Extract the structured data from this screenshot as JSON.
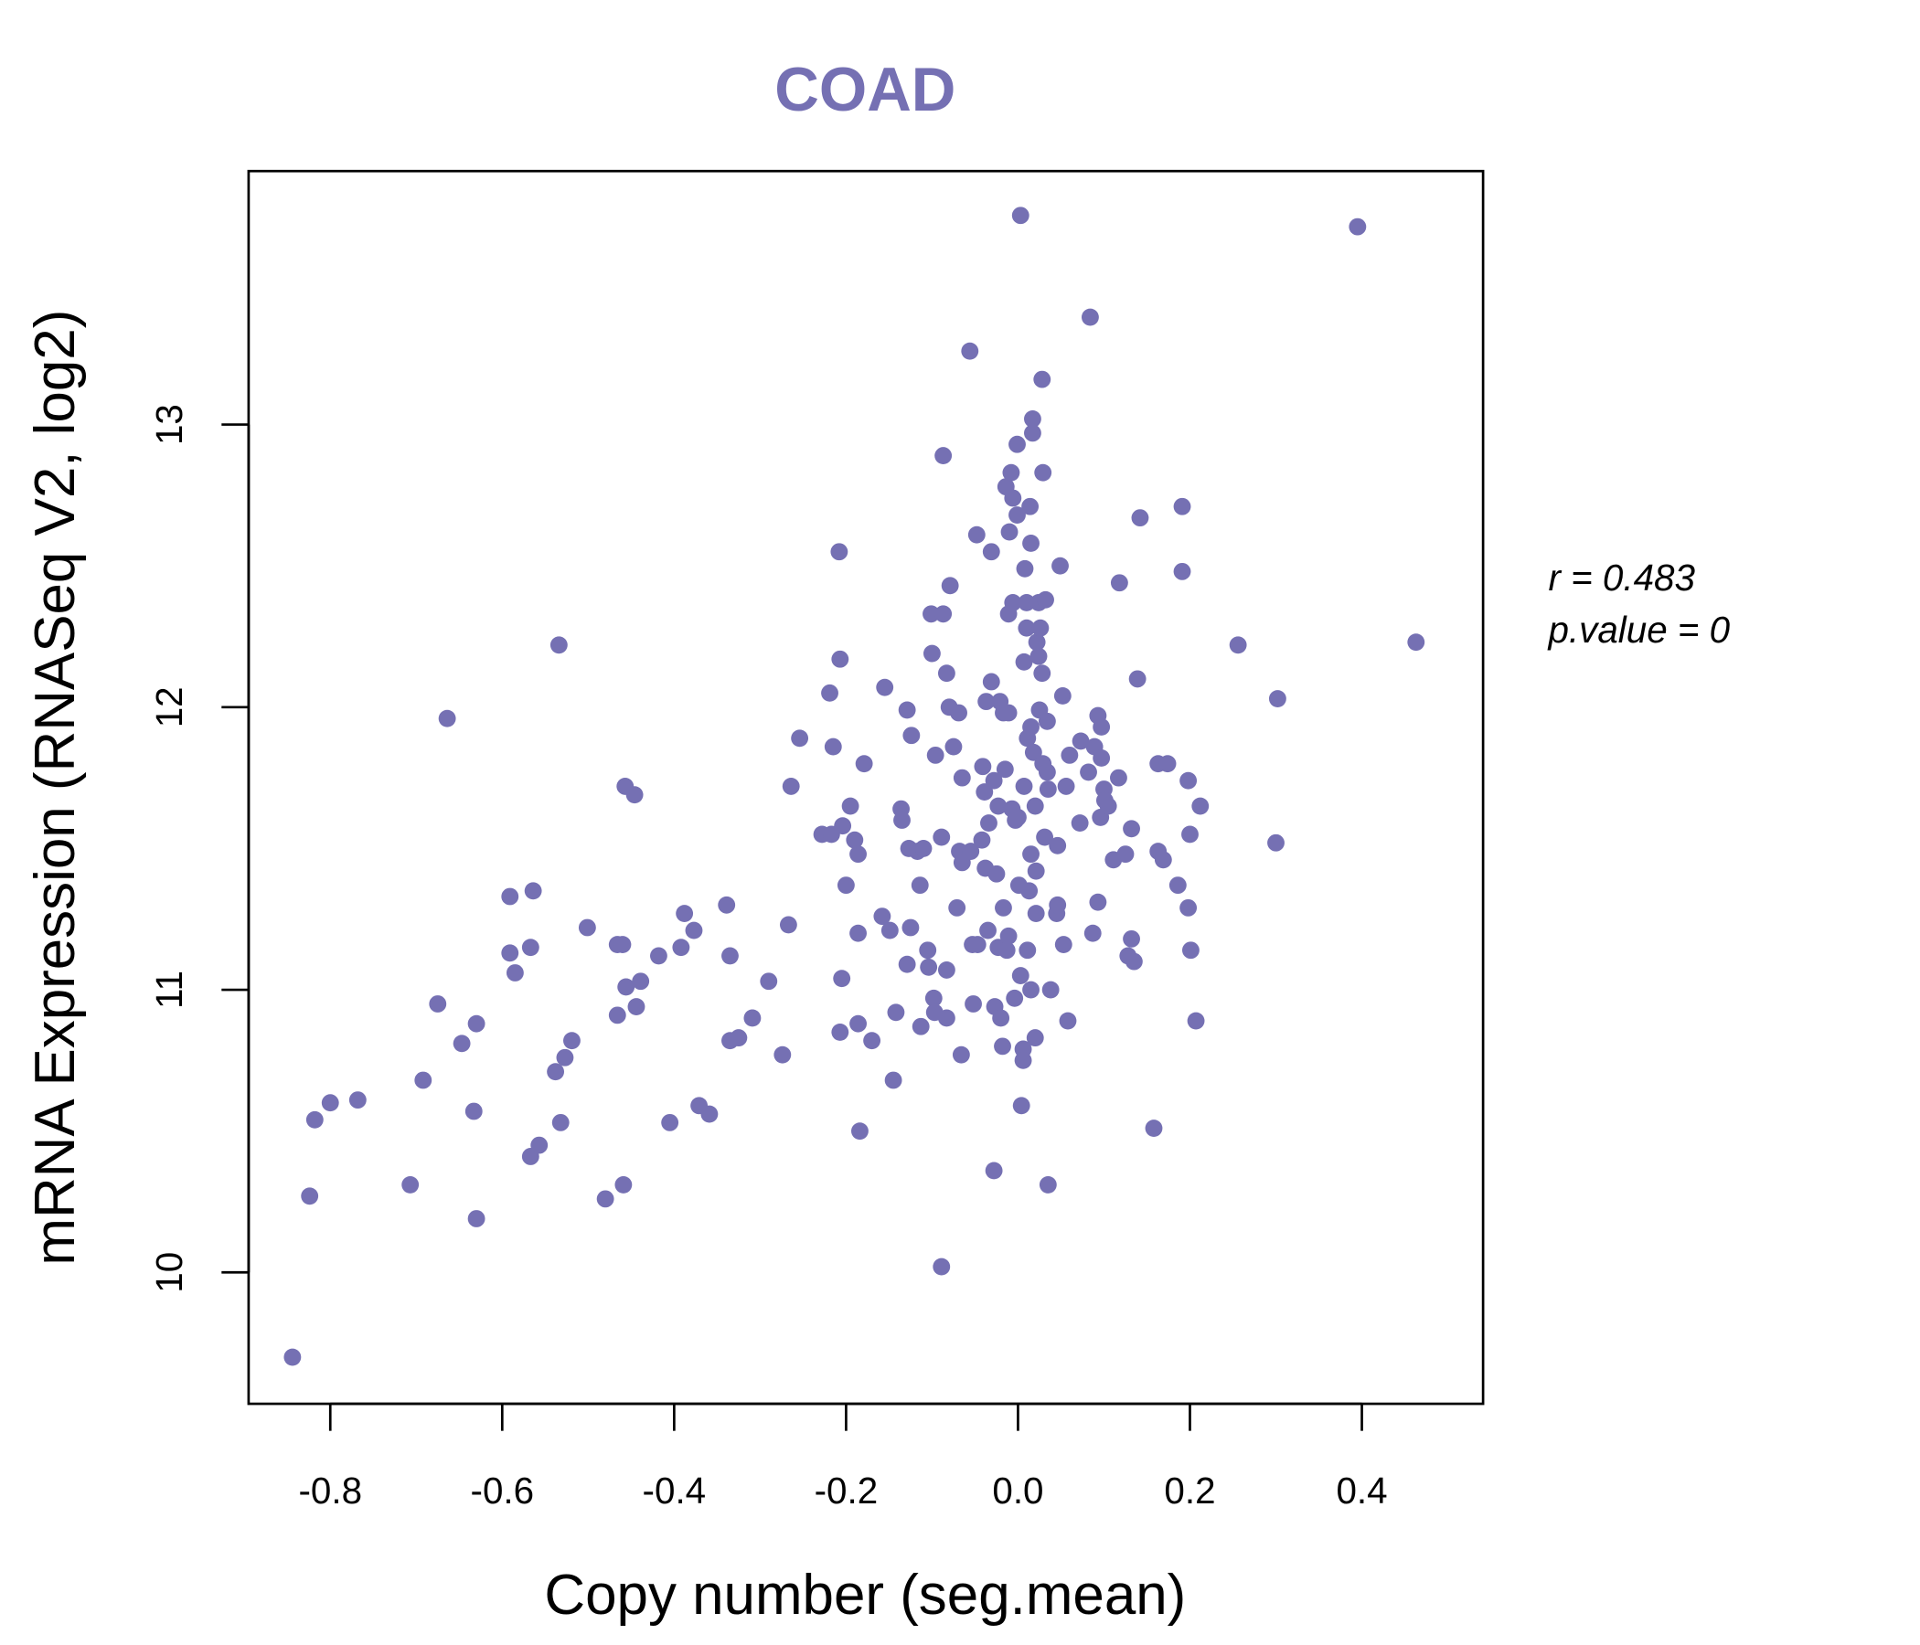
{
  "chart_data": {
    "type": "scatter",
    "title": "COAD",
    "xlabel": "Copy number (seg.mean)",
    "ylabel": "mRNA Expression (RNASeq V2, log2)",
    "xlim": [
      -0.895,
      0.541
    ],
    "ylim": [
      9.535,
      13.897
    ],
    "xticks": [
      -0.8,
      -0.6,
      -0.4,
      -0.2,
      0.0,
      0.2,
      0.4
    ],
    "xtick_labels": [
      "-0.8",
      "-0.6",
      "-0.4",
      "-0.2",
      "0.0",
      "0.2",
      "0.4"
    ],
    "yticks": [
      10,
      11,
      12,
      13
    ],
    "ytick_labels": [
      "10",
      "11",
      "12",
      "13"
    ],
    "grid": false,
    "color": "#7570B3",
    "annotations": {
      "r": "r = 0.483",
      "p": "p.value = 0"
    },
    "points": [
      [
        -0.844,
        9.7
      ],
      [
        -0.824,
        10.27
      ],
      [
        -0.818,
        10.54
      ],
      [
        -0.8,
        10.6
      ],
      [
        -0.768,
        10.61
      ],
      [
        -0.707,
        10.31
      ],
      [
        -0.692,
        10.68
      ],
      [
        -0.675,
        10.95
      ],
      [
        -0.664,
        11.96
      ],
      [
        -0.647,
        10.81
      ],
      [
        -0.633,
        10.57
      ],
      [
        -0.63,
        10.19
      ],
      [
        -0.63,
        10.88
      ],
      [
        -0.591,
        11.33
      ],
      [
        -0.591,
        11.13
      ],
      [
        -0.585,
        11.06
      ],
      [
        -0.567,
        11.15
      ],
      [
        -0.564,
        11.35
      ],
      [
        -0.567,
        10.41
      ],
      [
        -0.557,
        10.45
      ],
      [
        -0.538,
        10.71
      ],
      [
        -0.534,
        12.22
      ],
      [
        -0.532,
        10.53
      ],
      [
        -0.527,
        10.76
      ],
      [
        -0.519,
        10.82
      ],
      [
        -0.501,
        11.22
      ],
      [
        -0.48,
        10.26
      ],
      [
        -0.466,
        11.16
      ],
      [
        -0.46,
        11.16
      ],
      [
        -0.466,
        10.91
      ],
      [
        -0.459,
        10.31
      ],
      [
        -0.457,
        11.72
      ],
      [
        -0.456,
        11.01
      ],
      [
        -0.446,
        11.69
      ],
      [
        -0.444,
        10.94
      ],
      [
        -0.439,
        11.03
      ],
      [
        -0.418,
        11.12
      ],
      [
        -0.405,
        10.53
      ],
      [
        -0.392,
        11.15
      ],
      [
        -0.388,
        11.27
      ],
      [
        -0.377,
        11.21
      ],
      [
        -0.371,
        10.59
      ],
      [
        -0.359,
        10.56
      ],
      [
        -0.339,
        11.3
      ],
      [
        -0.335,
        11.12
      ],
      [
        -0.335,
        10.82
      ],
      [
        -0.325,
        10.83
      ],
      [
        -0.309,
        10.9
      ],
      [
        -0.29,
        11.03
      ],
      [
        -0.274,
        10.77
      ],
      [
        -0.267,
        11.23
      ],
      [
        -0.264,
        11.72
      ],
      [
        -0.254,
        11.89
      ],
      [
        -0.228,
        11.55
      ],
      [
        -0.219,
        12.05
      ],
      [
        -0.217,
        11.55
      ],
      [
        -0.215,
        11.86
      ],
      [
        -0.208,
        12.55
      ],
      [
        -0.207,
        12.17
      ],
      [
        -0.207,
        10.85
      ],
      [
        -0.205,
        11.04
      ],
      [
        -0.204,
        11.58
      ],
      [
        -0.2,
        11.37
      ],
      [
        -0.195,
        11.65
      ],
      [
        -0.19,
        11.53
      ],
      [
        -0.186,
        10.88
      ],
      [
        -0.186,
        11.48
      ],
      [
        -0.184,
        10.5
      ],
      [
        -0.186,
        11.2
      ],
      [
        -0.179,
        11.8
      ],
      [
        -0.17,
        10.82
      ],
      [
        -0.158,
        11.26
      ],
      [
        -0.155,
        12.07
      ],
      [
        -0.149,
        11.21
      ],
      [
        -0.145,
        10.68
      ],
      [
        -0.142,
        10.92
      ],
      [
        -0.136,
        11.64
      ],
      [
        -0.135,
        11.6
      ],
      [
        -0.129,
        11.99
      ],
      [
        -0.129,
        11.09
      ],
      [
        -0.127,
        11.5
      ],
      [
        -0.125,
        11.22
      ],
      [
        -0.124,
        11.9
      ],
      [
        -0.117,
        11.49
      ],
      [
        -0.114,
        11.37
      ],
      [
        -0.113,
        10.87
      ],
      [
        -0.11,
        11.5
      ],
      [
        -0.105,
        11.14
      ],
      [
        -0.104,
        11.08
      ],
      [
        -0.101,
        12.33
      ],
      [
        -0.1,
        12.19
      ],
      [
        -0.098,
        10.97
      ],
      [
        -0.097,
        10.92
      ],
      [
        -0.096,
        11.83
      ],
      [
        -0.089,
        11.54
      ],
      [
        -0.089,
        10.02
      ],
      [
        -0.087,
        12.89
      ],
      [
        -0.087,
        12.33
      ],
      [
        -0.083,
        10.9
      ],
      [
        -0.083,
        12.12
      ],
      [
        -0.083,
        11.07
      ],
      [
        -0.08,
        12.0
      ],
      [
        -0.079,
        12.43
      ],
      [
        -0.075,
        11.86
      ],
      [
        -0.071,
        11.29
      ],
      [
        -0.069,
        11.98
      ],
      [
        -0.068,
        11.49
      ],
      [
        -0.066,
        10.77
      ],
      [
        -0.065,
        11.45
      ],
      [
        -0.065,
        11.75
      ],
      [
        -0.056,
        13.26
      ],
      [
        -0.055,
        11.49
      ],
      [
        -0.053,
        11.16
      ],
      [
        -0.052,
        10.95
      ],
      [
        -0.048,
        12.61
      ],
      [
        -0.047,
        11.16
      ],
      [
        -0.042,
        11.53
      ],
      [
        -0.041,
        11.79
      ],
      [
        -0.039,
        11.7
      ],
      [
        -0.038,
        11.43
      ],
      [
        -0.037,
        12.02
      ],
      [
        -0.035,
        11.21
      ],
      [
        -0.034,
        11.59
      ],
      [
        -0.031,
        12.09
      ],
      [
        -0.031,
        12.55
      ],
      [
        -0.028,
        10.36
      ],
      [
        -0.028,
        11.74
      ],
      [
        -0.027,
        10.94
      ],
      [
        -0.025,
        11.41
      ],
      [
        -0.023,
        11.65
      ],
      [
        -0.023,
        11.15
      ],
      [
        -0.021,
        12.02
      ],
      [
        -0.02,
        10.9
      ],
      [
        -0.018,
        10.8
      ],
      [
        -0.017,
        11.98
      ],
      [
        -0.017,
        11.29
      ],
      [
        -0.015,
        11.78
      ],
      [
        -0.014,
        12.78
      ],
      [
        -0.013,
        11.14
      ],
      [
        -0.011,
        11.98
      ],
      [
        -0.011,
        12.33
      ],
      [
        -0.011,
        11.19
      ],
      [
        -0.01,
        12.62
      ],
      [
        -0.008,
        12.83
      ],
      [
        -0.007,
        11.64
      ],
      [
        -0.006,
        12.74
      ],
      [
        -0.006,
        12.37
      ],
      [
        -0.004,
        10.97
      ],
      [
        -0.003,
        11.6
      ],
      [
        -0.001,
        12.93
      ],
      [
        -0.001,
        12.68
      ],
      [
        0.0,
        11.61
      ],
      [
        0.001,
        11.37
      ],
      [
        0.003,
        13.74
      ],
      [
        0.003,
        11.05
      ],
      [
        0.004,
        10.59
      ],
      [
        0.006,
        10.79
      ],
      [
        0.006,
        10.75
      ],
      [
        0.007,
        12.16
      ],
      [
        0.007,
        11.72
      ],
      [
        0.008,
        12.49
      ],
      [
        0.01,
        12.37
      ],
      [
        0.01,
        12.28
      ],
      [
        0.011,
        11.89
      ],
      [
        0.011,
        11.14
      ],
      [
        0.013,
        11.35
      ],
      [
        0.014,
        12.71
      ],
      [
        0.015,
        11.93
      ],
      [
        0.015,
        12.58
      ],
      [
        0.015,
        11.48
      ],
      [
        0.015,
        11.0
      ],
      [
        0.017,
        13.02
      ],
      [
        0.017,
        12.97
      ],
      [
        0.018,
        11.84
      ],
      [
        0.02,
        10.83
      ],
      [
        0.02,
        11.65
      ],
      [
        0.021,
        11.42
      ],
      [
        0.021,
        11.27
      ],
      [
        0.022,
        12.23
      ],
      [
        0.024,
        12.18
      ],
      [
        0.024,
        12.37
      ],
      [
        0.025,
        11.99
      ],
      [
        0.026,
        12.28
      ],
      [
        0.028,
        13.16
      ],
      [
        0.028,
        12.12
      ],
      [
        0.029,
        12.83
      ],
      [
        0.029,
        11.8
      ],
      [
        0.031,
        11.54
      ],
      [
        0.032,
        12.38
      ],
      [
        0.034,
        11.95
      ],
      [
        0.034,
        11.77
      ],
      [
        0.035,
        11.71
      ],
      [
        0.035,
        10.31
      ],
      [
        0.038,
        11.0
      ],
      [
        0.045,
        11.27
      ],
      [
        0.046,
        11.51
      ],
      [
        0.046,
        11.3
      ],
      [
        0.049,
        12.5
      ],
      [
        0.052,
        12.04
      ],
      [
        0.053,
        11.16
      ],
      [
        0.056,
        11.72
      ],
      [
        0.058,
        10.89
      ],
      [
        0.06,
        11.83
      ],
      [
        0.072,
        11.59
      ],
      [
        0.073,
        11.88
      ],
      [
        0.082,
        11.77
      ],
      [
        0.084,
        13.38
      ],
      [
        0.087,
        11.2
      ],
      [
        0.089,
        11.86
      ],
      [
        0.093,
        11.97
      ],
      [
        0.093,
        11.31
      ],
      [
        0.096,
        11.61
      ],
      [
        0.097,
        11.93
      ],
      [
        0.097,
        11.82
      ],
      [
        0.1,
        11.71
      ],
      [
        0.101,
        11.67
      ],
      [
        0.105,
        11.65
      ],
      [
        0.111,
        11.46
      ],
      [
        0.117,
        11.75
      ],
      [
        0.118,
        12.44
      ],
      [
        0.125,
        11.48
      ],
      [
        0.128,
        11.12
      ],
      [
        0.132,
        11.57
      ],
      [
        0.132,
        11.18
      ],
      [
        0.135,
        11.1
      ],
      [
        0.139,
        12.1
      ],
      [
        0.142,
        12.67
      ],
      [
        0.158,
        10.51
      ],
      [
        0.163,
        11.49
      ],
      [
        0.163,
        11.8
      ],
      [
        0.169,
        11.46
      ],
      [
        0.174,
        11.8
      ],
      [
        0.186,
        11.37
      ],
      [
        0.191,
        12.71
      ],
      [
        0.191,
        12.48
      ],
      [
        0.198,
        11.29
      ],
      [
        0.198,
        11.74
      ],
      [
        0.2,
        11.55
      ],
      [
        0.201,
        11.14
      ],
      [
        0.207,
        10.89
      ],
      [
        0.212,
        11.65
      ],
      [
        0.256,
        12.22
      ],
      [
        0.3,
        11.52
      ],
      [
        0.302,
        12.03
      ],
      [
        0.395,
        13.7
      ],
      [
        0.463,
        12.23
      ]
    ]
  }
}
